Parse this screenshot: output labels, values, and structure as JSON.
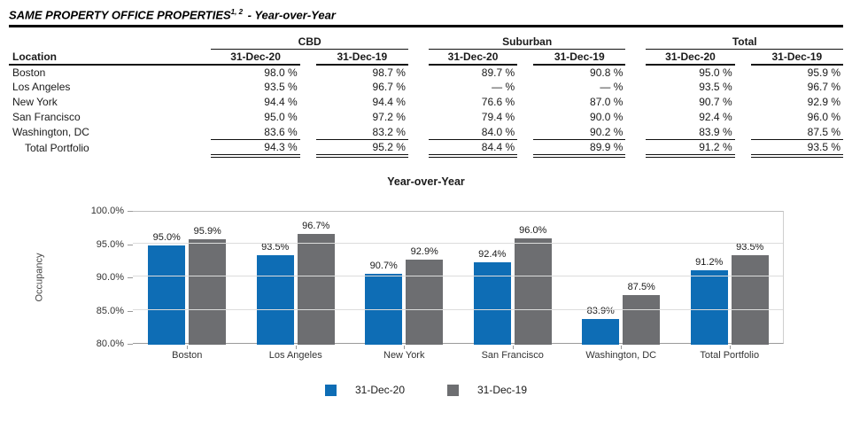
{
  "document": {
    "title": "SAME PROPERTY OFFICE PROPERTIES",
    "title_superscript": "1, 2",
    "title_suffix": "- Year-over-Year"
  },
  "table": {
    "location_header": "Location",
    "groups": [
      "CBD",
      "Suburban",
      "Total"
    ],
    "period_headers": [
      "31-Dec-20",
      "31-Dec-19"
    ],
    "rows": [
      {
        "location": "Boston",
        "values": [
          "98.0 %",
          "98.7 %",
          "89.7 %",
          "90.8 %",
          "95.0 %",
          "95.9 %"
        ],
        "total": false
      },
      {
        "location": "Los Angeles",
        "values": [
          "93.5 %",
          "96.7 %",
          "— %",
          "— %",
          "93.5 %",
          "96.7 %"
        ],
        "total": false
      },
      {
        "location": "New York",
        "values": [
          "94.4 %",
          "94.4 %",
          "76.6 %",
          "87.0 %",
          "90.7 %",
          "92.9 %"
        ],
        "total": false
      },
      {
        "location": "San Francisco",
        "values": [
          "95.0 %",
          "97.2 %",
          "79.4 %",
          "90.0 %",
          "92.4 %",
          "96.0 %"
        ],
        "total": false
      },
      {
        "location": "Washington, DC",
        "values": [
          "83.6 %",
          "83.2 %",
          "84.0 %",
          "90.2 %",
          "83.9 %",
          "87.5 %"
        ],
        "total": false
      },
      {
        "location": "Total Portfolio",
        "values": [
          "94.3 %",
          "95.2 %",
          "84.4 %",
          "89.9 %",
          "91.2 %",
          "93.5 %"
        ],
        "total": true
      }
    ]
  },
  "chart_data": {
    "type": "bar",
    "title": "Year-over-Year",
    "ylabel": "Occupancy",
    "categories": [
      "Boston",
      "Los Angeles",
      "New York",
      "San Francisco",
      "Washington, DC",
      "Total Portfolio"
    ],
    "series": [
      {
        "name": "31-Dec-20",
        "color": "#0E6DB5",
        "values": [
          95.0,
          93.5,
          90.7,
          92.4,
          83.9,
          91.2
        ],
        "labels": [
          "95.0%",
          "93.5%",
          "90.7%",
          "92.4%",
          "83.9%",
          "91.2%"
        ]
      },
      {
        "name": "31-Dec-19",
        "color": "#6D6E71",
        "values": [
          95.9,
          96.7,
          92.9,
          96.0,
          87.5,
          93.5
        ],
        "labels": [
          "95.9%",
          "96.7%",
          "92.9%",
          "96.0%",
          "87.5%",
          "93.5%"
        ]
      }
    ],
    "ylim": [
      80,
      100
    ],
    "yticks": [
      80,
      85,
      90,
      95,
      100
    ],
    "ytick_labels": [
      "80.0%",
      "85.0%",
      "90.0%",
      "95.0%",
      "100.0%"
    ],
    "grid": true,
    "legend_position": "bottom"
  }
}
